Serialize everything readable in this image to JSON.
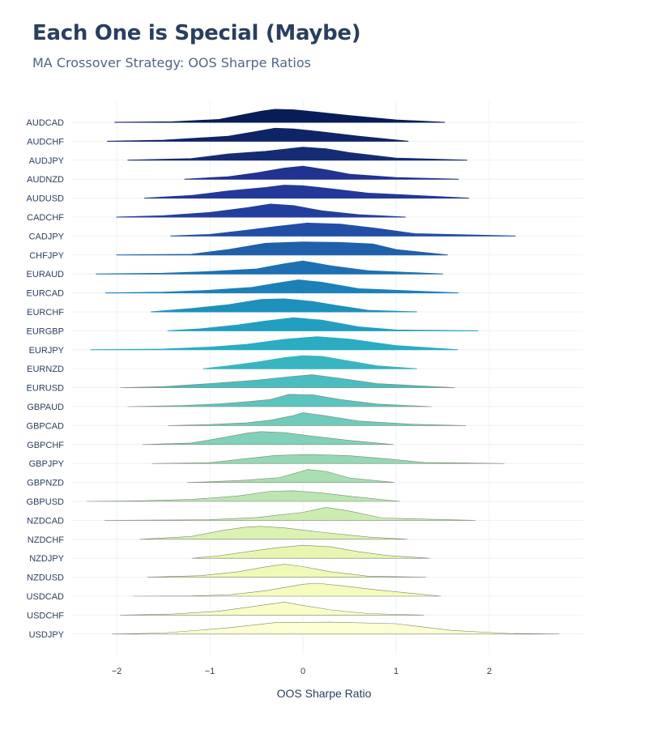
{
  "title": "Each One is Special (Maybe)",
  "subtitle": "MA Crossover Strategy: OOS Sharpe Ratios",
  "chart_data": {
    "type": "ridgeline",
    "xlabel": "OOS Sharpe Ratio",
    "xlim": [
      -2.5,
      3.0
    ],
    "xticks": [
      -2,
      -1,
      0,
      1,
      2
    ],
    "xtick_labels": [
      "−2",
      "−1",
      "0",
      "1",
      "2"
    ],
    "grid": true,
    "legend": "none",
    "series": [
      {
        "name": "AUDCAD",
        "color": "#081d58",
        "x": [
          -2.02,
          -1.4,
          -0.9,
          -0.45,
          -0.3,
          -0.1,
          0.1,
          0.5,
          1.0,
          1.52
        ],
        "density": [
          0.0,
          0.04,
          0.22,
          0.85,
          1.0,
          0.96,
          0.82,
          0.52,
          0.18,
          0.0
        ]
      },
      {
        "name": "AUDCHF",
        "color": "#0e2467",
        "x": [
          -2.1,
          -1.5,
          -0.8,
          -0.5,
          -0.3,
          -0.1,
          0.2,
          0.6,
          1.13
        ],
        "density": [
          0.0,
          0.08,
          0.38,
          0.75,
          1.0,
          0.95,
          0.72,
          0.38,
          0.0
        ]
      },
      {
        "name": "AUDJPY",
        "color": "#152c75",
        "x": [
          -1.88,
          -1.2,
          -0.8,
          -0.4,
          0.0,
          0.25,
          0.5,
          1.0,
          1.76
        ],
        "density": [
          0.0,
          0.12,
          0.48,
          0.68,
          1.0,
          0.88,
          0.58,
          0.16,
          0.0
        ]
      },
      {
        "name": "AUDNZD",
        "color": "#213290",
        "x": [
          -1.27,
          -0.8,
          -0.5,
          -0.2,
          0.0,
          0.25,
          0.5,
          1.0,
          1.67
        ],
        "density": [
          0.0,
          0.18,
          0.48,
          0.85,
          1.0,
          0.72,
          0.38,
          0.12,
          0.0
        ]
      },
      {
        "name": "AUDUSD",
        "color": "#23399a",
        "x": [
          -1.7,
          -1.2,
          -0.8,
          -0.4,
          -0.2,
          0.0,
          0.3,
          0.7,
          1.78
        ],
        "density": [
          0.0,
          0.2,
          0.55,
          0.82,
          1.0,
          0.95,
          0.72,
          0.38,
          0.0
        ]
      },
      {
        "name": "CADCHF",
        "color": "#233f9e",
        "x": [
          -2.0,
          -1.5,
          -1.0,
          -0.6,
          -0.35,
          -0.1,
          0.2,
          0.6,
          1.1
        ],
        "density": [
          0.0,
          0.1,
          0.35,
          0.72,
          1.0,
          0.88,
          0.48,
          0.18,
          0.0
        ]
      },
      {
        "name": "CADJPY",
        "color": "#224ea6",
        "x": [
          -1.42,
          -1.0,
          -0.6,
          -0.3,
          0.05,
          0.4,
          0.8,
          1.2,
          2.28
        ],
        "density": [
          0.0,
          0.12,
          0.45,
          0.72,
          1.0,
          0.92,
          0.58,
          0.18,
          0.0
        ]
      },
      {
        "name": "CHFJPY",
        "color": "#2060ab",
        "x": [
          -2.0,
          -1.2,
          -0.8,
          -0.4,
          0.0,
          0.4,
          0.75,
          1.0,
          1.55
        ],
        "density": [
          0.0,
          0.05,
          0.42,
          0.9,
          1.0,
          0.96,
          0.85,
          0.42,
          0.0
        ]
      },
      {
        "name": "EURAUD",
        "color": "#1e70b2",
        "x": [
          -2.22,
          -1.5,
          -1.0,
          -0.5,
          -0.2,
          0.0,
          0.3,
          0.7,
          1.5
        ],
        "density": [
          0.0,
          0.05,
          0.18,
          0.38,
          0.78,
          1.0,
          0.62,
          0.25,
          0.0
        ]
      },
      {
        "name": "EURCAD",
        "color": "#1d80b7",
        "x": [
          -2.12,
          -1.5,
          -1.0,
          -0.55,
          -0.25,
          -0.05,
          0.2,
          0.6,
          1.67
        ],
        "density": [
          0.0,
          0.05,
          0.2,
          0.42,
          0.78,
          1.0,
          0.82,
          0.32,
          0.0
        ]
      },
      {
        "name": "EURCHF",
        "color": "#1e90bc",
        "x": [
          -1.63,
          -1.2,
          -0.8,
          -0.45,
          -0.2,
          0.1,
          0.35,
          0.7,
          1.22
        ],
        "density": [
          0.0,
          0.25,
          0.55,
          0.95,
          1.0,
          0.8,
          0.5,
          0.12,
          0.0
        ]
      },
      {
        "name": "EURGBP",
        "color": "#229fc0",
        "x": [
          -1.45,
          -1.1,
          -0.7,
          -0.4,
          -0.1,
          0.2,
          0.6,
          1.0,
          1.88
        ],
        "density": [
          0.0,
          0.15,
          0.45,
          0.75,
          1.0,
          0.82,
          0.3,
          0.06,
          0.0
        ]
      },
      {
        "name": "EURJPY",
        "color": "#2aacc1",
        "x": [
          -2.28,
          -1.5,
          -1.0,
          -0.6,
          -0.2,
          0.15,
          0.5,
          1.0,
          1.66
        ],
        "density": [
          0.0,
          0.05,
          0.2,
          0.42,
          0.8,
          1.0,
          0.82,
          0.32,
          0.0
        ]
      },
      {
        "name": "EURNZD",
        "color": "#38b5c1",
        "x": [
          -1.07,
          -0.8,
          -0.5,
          -0.2,
          0.0,
          0.2,
          0.5,
          0.8,
          1.22
        ],
        "density": [
          0.0,
          0.22,
          0.5,
          0.85,
          1.0,
          0.95,
          0.58,
          0.22,
          0.0
        ]
      },
      {
        "name": "EURUSD",
        "color": "#4abdc1",
        "x": [
          -1.96,
          -1.5,
          -1.0,
          -0.5,
          -0.1,
          0.1,
          0.4,
          0.8,
          1.63
        ],
        "density": [
          0.0,
          0.08,
          0.32,
          0.58,
          0.88,
          1.0,
          0.72,
          0.32,
          0.0
        ]
      },
      {
        "name": "GBPAUD",
        "color": "#5cc4c0",
        "x": [
          -1.88,
          -1.3,
          -0.9,
          -0.6,
          -0.35,
          -0.15,
          0.1,
          0.4,
          0.8,
          1.38
        ],
        "density": [
          0.0,
          0.08,
          0.22,
          0.38,
          0.55,
          0.95,
          0.92,
          0.55,
          0.2,
          0.0
        ]
      },
      {
        "name": "GBPCAD",
        "color": "#6ecbbd",
        "x": [
          -1.45,
          -1.0,
          -0.6,
          -0.35,
          -0.1,
          0.0,
          0.2,
          0.6,
          1.2,
          1.75
        ],
        "density": [
          0.0,
          0.08,
          0.22,
          0.42,
          0.78,
          1.0,
          0.8,
          0.35,
          0.1,
          0.0
        ]
      },
      {
        "name": "GBPCHF",
        "color": "#81d1ba",
        "x": [
          -1.72,
          -1.2,
          -0.9,
          -0.6,
          -0.45,
          -0.2,
          0.1,
          0.5,
          0.97
        ],
        "density": [
          0.0,
          0.12,
          0.48,
          0.88,
          1.0,
          0.92,
          0.65,
          0.32,
          0.0
        ]
      },
      {
        "name": "GBPJPY",
        "color": "#95d8b6",
        "x": [
          -1.62,
          -1.0,
          -0.6,
          -0.3,
          0.1,
          0.5,
          0.9,
          1.3,
          2.16
        ],
        "density": [
          0.0,
          0.06,
          0.38,
          0.62,
          0.7,
          0.6,
          0.36,
          0.08,
          0.0
        ]
      },
      {
        "name": "GBPNZD",
        "color": "#a8dfb3",
        "x": [
          -1.24,
          -1.0,
          -0.6,
          -0.25,
          -0.05,
          0.05,
          0.25,
          0.5,
          0.98
        ],
        "density": [
          0.0,
          0.05,
          0.18,
          0.38,
          0.78,
          1.0,
          0.85,
          0.35,
          0.0
        ]
      },
      {
        "name": "GBPUSD",
        "color": "#bbe6b2",
        "x": [
          -2.32,
          -1.8,
          -1.2,
          -0.7,
          -0.35,
          -0.1,
          0.2,
          0.5,
          1.04
        ],
        "density": [
          0.0,
          0.04,
          0.15,
          0.42,
          0.78,
          0.82,
          0.65,
          0.4,
          0.0
        ]
      },
      {
        "name": "NZDCAD",
        "color": "#ccedb1",
        "x": [
          -2.13,
          -1.6,
          -1.0,
          -0.5,
          0.0,
          0.25,
          0.5,
          0.85,
          1.85
        ],
        "density": [
          0.0,
          0.02,
          0.05,
          0.22,
          0.62,
          1.0,
          0.72,
          0.18,
          0.0
        ]
      },
      {
        "name": "NZDCHF",
        "color": "#dbf2b2",
        "x": [
          -1.75,
          -1.2,
          -0.85,
          -0.6,
          -0.45,
          -0.2,
          0.2,
          0.7,
          1.12
        ],
        "density": [
          0.0,
          0.22,
          0.7,
          0.95,
          1.0,
          0.88,
          0.55,
          0.18,
          0.0
        ]
      },
      {
        "name": "NZDJPY",
        "color": "#e8f6b1",
        "x": [
          -1.19,
          -0.9,
          -0.6,
          -0.3,
          0.0,
          0.3,
          0.6,
          0.9,
          1.36
        ],
        "density": [
          0.0,
          0.2,
          0.5,
          0.8,
          1.0,
          0.88,
          0.5,
          0.22,
          0.0
        ]
      },
      {
        "name": "NZDUSD",
        "color": "#f1f9b7",
        "x": [
          -1.67,
          -1.1,
          -0.7,
          -0.4,
          -0.2,
          0.0,
          0.3,
          0.7,
          1.32
        ],
        "density": [
          0.0,
          0.12,
          0.42,
          0.8,
          1.0,
          0.82,
          0.42,
          0.08,
          0.0
        ]
      },
      {
        "name": "USDCAD",
        "color": "#f6fbbe",
        "x": [
          -1.82,
          -1.2,
          -0.8,
          -0.4,
          0.0,
          0.15,
          0.4,
          0.8,
          1.48
        ],
        "density": [
          0.0,
          0.02,
          0.1,
          0.42,
          0.92,
          1.0,
          0.82,
          0.48,
          0.0
        ]
      },
      {
        "name": "USDCHF",
        "color": "#fafdc6",
        "x": [
          -1.96,
          -1.4,
          -0.9,
          -0.5,
          -0.2,
          0.0,
          0.3,
          0.7,
          1.3
        ],
        "density": [
          0.0,
          0.08,
          0.3,
          0.7,
          1.0,
          0.75,
          0.4,
          0.12,
          0.0
        ]
      },
      {
        "name": "USDJPY",
        "color": "#fdfed3",
        "x": [
          -2.05,
          -1.5,
          -0.8,
          -0.3,
          0.3,
          1.0,
          1.6,
          2.2,
          2.75
        ],
        "density": [
          0.0,
          0.08,
          0.48,
          0.88,
          0.92,
          0.8,
          0.28,
          0.05,
          0.0
        ]
      }
    ]
  }
}
